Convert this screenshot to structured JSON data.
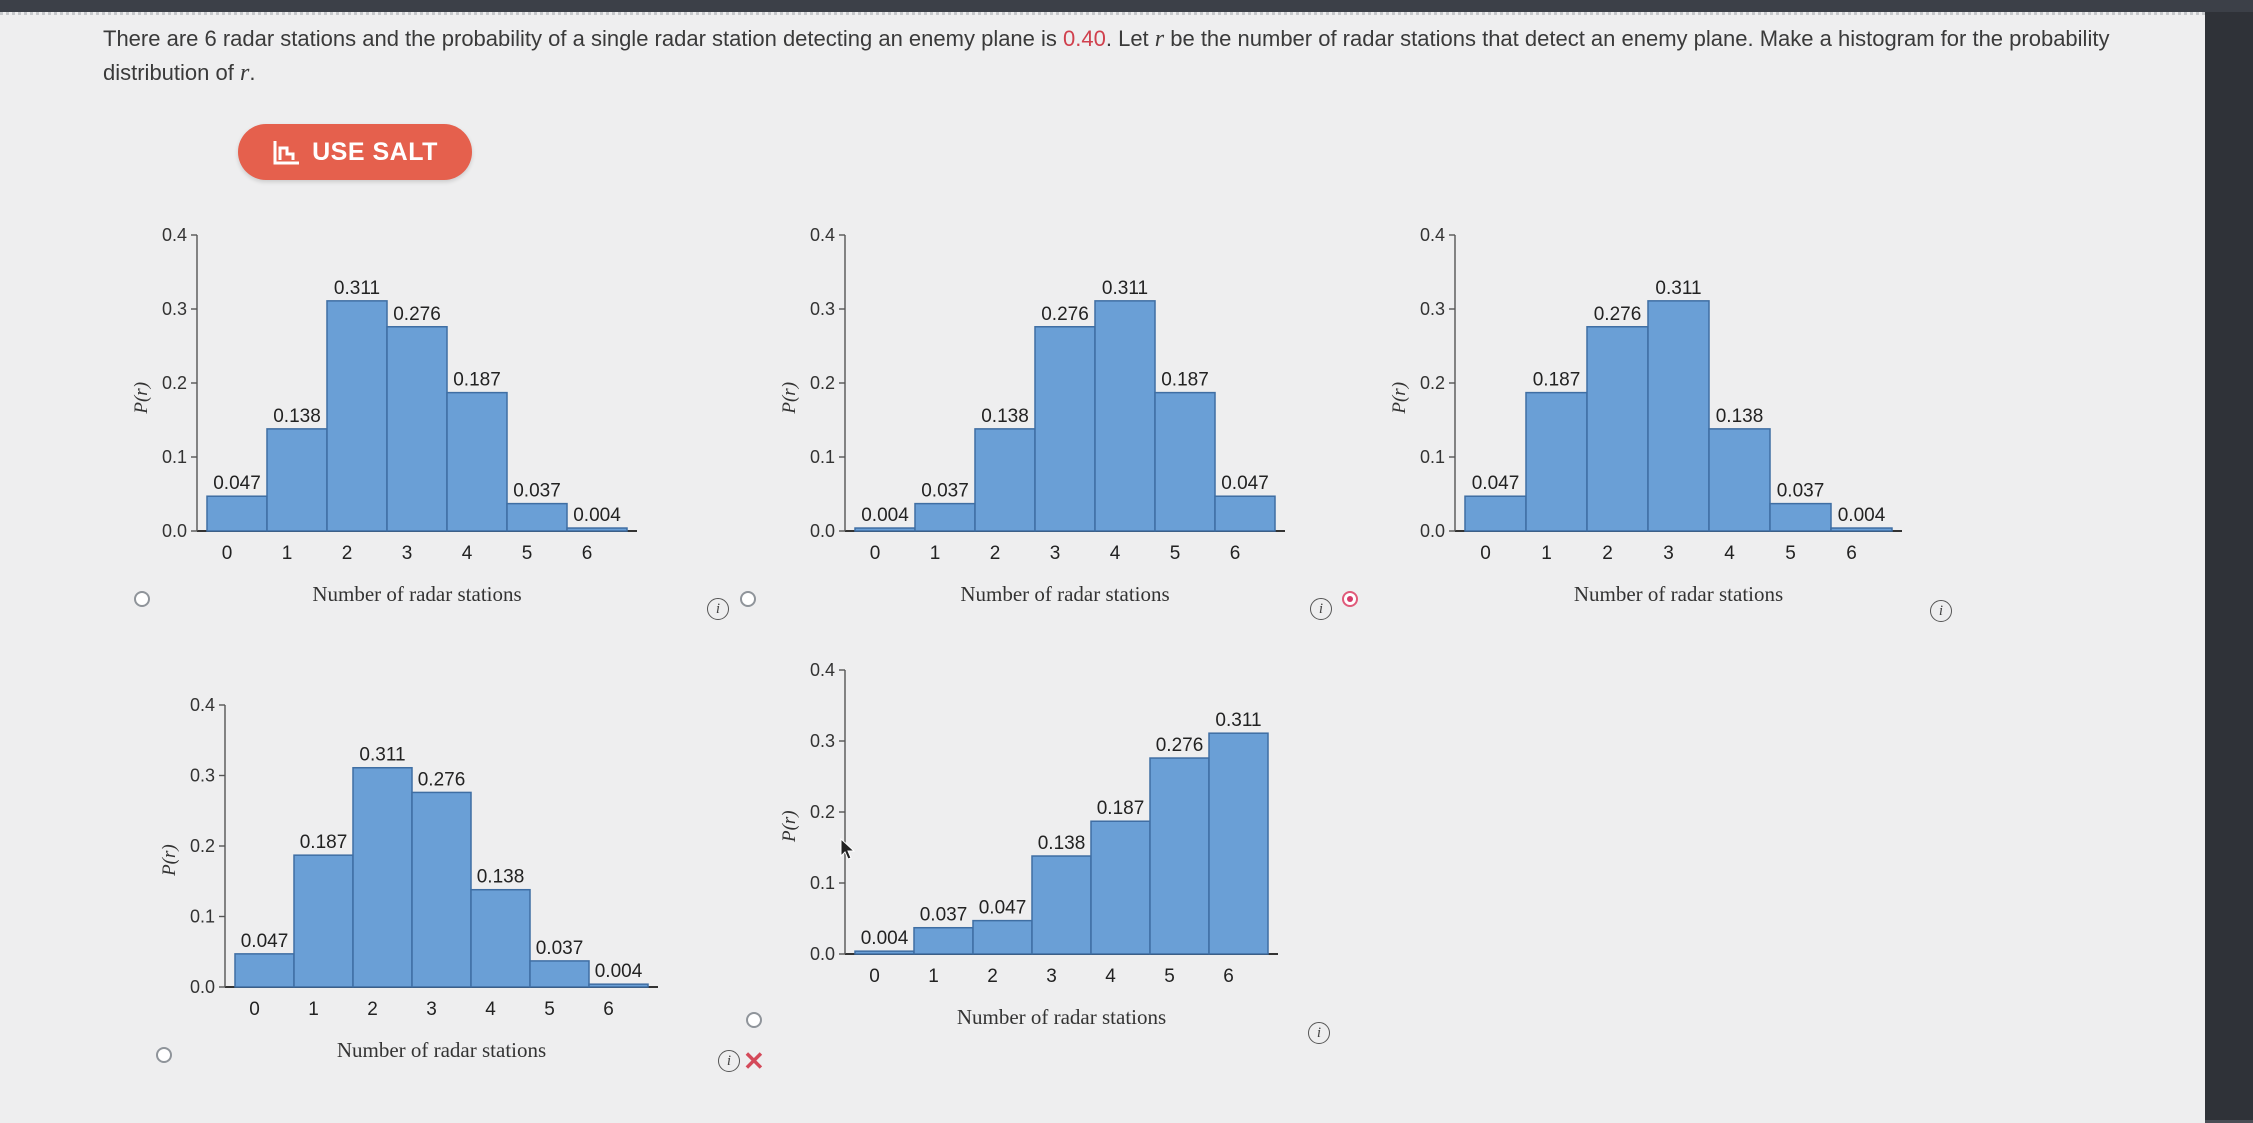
{
  "question": {
    "text_1": "There are 6 radar stations and the probability of a single radar station detecting an enemy plane is ",
    "probability": "0.40",
    "text_2": ". Let ",
    "var_r": "r",
    "text_3": " be the number of radar stations that detect an enemy plane. Make a histogram for the probability distribution of ",
    "var_r2": "r",
    "text_4": "."
  },
  "salt_button": {
    "label": "USE SALT",
    "icon": "salt-chart-icon"
  },
  "info_label": "i",
  "incorrect_mark": "✕",
  "colors": {
    "bar_fill": "#6a9fd6",
    "bar_stroke": "#3f6ea3",
    "selected": "#d63a68",
    "incorrect": "#d44a5a",
    "accent": "#e5604d"
  },
  "selected_option": 3,
  "incorrect_option": 5,
  "chart_data": [
    {
      "type": "bar",
      "categories": [
        "0",
        "1",
        "2",
        "3",
        "4",
        "5",
        "6"
      ],
      "values": [
        0.047,
        0.138,
        0.311,
        0.276,
        0.187,
        0.037,
        0.004
      ],
      "data_labels": [
        "0.047",
        "0.138",
        "0.311",
        "0.276",
        "0.187",
        "0.037",
        "0.004"
      ],
      "xlabel": "Number of radar stations",
      "ylabel": "P(r)",
      "ylim": [
        0,
        0.4
      ],
      "yticks": [
        "0.0",
        "0.1",
        "0.2",
        "0.3",
        "0.4"
      ]
    },
    {
      "type": "bar",
      "categories": [
        "0",
        "1",
        "2",
        "3",
        "4",
        "5",
        "6"
      ],
      "values": [
        0.004,
        0.037,
        0.138,
        0.276,
        0.311,
        0.187,
        0.047
      ],
      "data_labels": [
        "0.004",
        "0.037",
        "0.138",
        "0.276",
        "0.311",
        "0.187",
        "0.047"
      ],
      "xlabel": "Number of radar stations",
      "ylabel": "P(r)",
      "ylim": [
        0,
        0.4
      ],
      "yticks": [
        "0.0",
        "0.1",
        "0.2",
        "0.3",
        "0.4"
      ]
    },
    {
      "type": "bar",
      "categories": [
        "0",
        "1",
        "2",
        "3",
        "4",
        "5",
        "6"
      ],
      "values": [
        0.047,
        0.187,
        0.276,
        0.311,
        0.138,
        0.037,
        0.004
      ],
      "data_labels": [
        "0.047",
        "0.187",
        "0.276",
        "0.311",
        "0.138",
        "0.037",
        "0.004"
      ],
      "xlabel": "Number of radar stations",
      "ylabel": "P(r)",
      "ylim": [
        0,
        0.4
      ],
      "yticks": [
        "0.0",
        "0.1",
        "0.2",
        "0.3",
        "0.4"
      ]
    },
    {
      "type": "bar",
      "categories": [
        "0",
        "1",
        "2",
        "3",
        "4",
        "5",
        "6"
      ],
      "values": [
        0.047,
        0.187,
        0.311,
        0.276,
        0.138,
        0.037,
        0.004
      ],
      "data_labels": [
        "0.047",
        "0.187",
        "0.311",
        "0.276",
        "0.138",
        "0.037",
        "0.004"
      ],
      "xlabel": "Number of radar stations",
      "ylabel": "P(r)",
      "ylim": [
        0,
        0.4
      ],
      "yticks": [
        "0.0",
        "0.1",
        "0.2",
        "0.3",
        "0.4"
      ]
    },
    {
      "type": "bar",
      "categories": [
        "0",
        "1",
        "2",
        "3",
        "4",
        "5",
        "6"
      ],
      "values": [
        0.004,
        0.037,
        0.047,
        0.138,
        0.187,
        0.276,
        0.311
      ],
      "data_labels": [
        "0.004",
        "0.037",
        "0.047",
        "0.138",
        "0.187",
        "0.276",
        "0.311"
      ],
      "xlabel": "Number of radar stations",
      "ylabel": "P(r)",
      "ylim": [
        0,
        0.4
      ],
      "yticks": [
        "0.0",
        "0.1",
        "0.2",
        "0.3",
        "0.4"
      ]
    }
  ]
}
